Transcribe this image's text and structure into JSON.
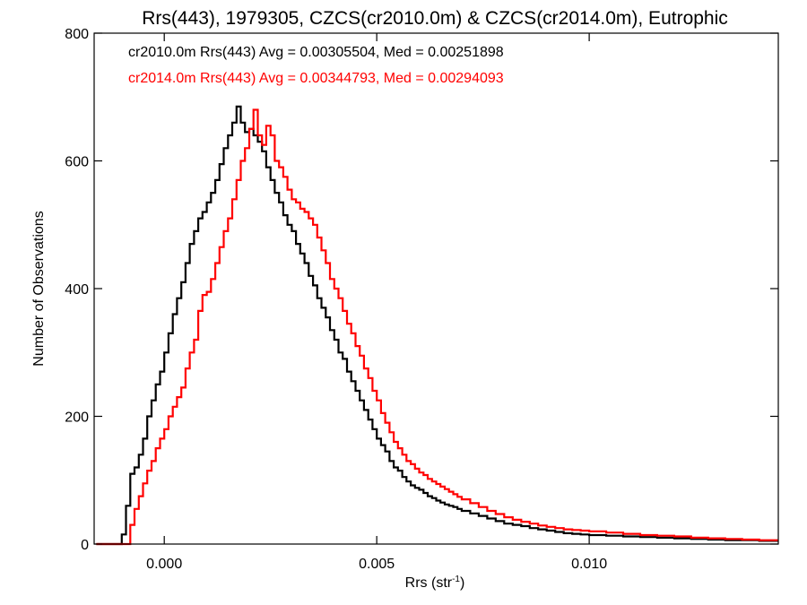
{
  "chart_data": {
    "type": "histogram",
    "title": "Rrs(443), 1979305, CZCS(cr2010.0m) & CZCS(cr2014.0m), Eutrophic",
    "xlabel_main": "Rrs (str",
    "xlabel_sup": "-1",
    "xlabel_close": ")",
    "ylabel": "Number of Observations",
    "xlim": [
      -0.00165,
      0.01445
    ],
    "ylim": [
      0,
      800
    ],
    "x_ticks": [
      {
        "value": 0.0,
        "label": "0.000"
      },
      {
        "value": 0.005,
        "label": "0.005"
      },
      {
        "value": 0.01,
        "label": "0.010"
      }
    ],
    "y_ticks": [
      {
        "value": 0,
        "label": "0"
      },
      {
        "value": 200,
        "label": "200"
      },
      {
        "value": 400,
        "label": "400"
      },
      {
        "value": 600,
        "label": "600"
      },
      {
        "value": 800,
        "label": "800"
      }
    ],
    "annotations": [
      {
        "text": "cr2010.0m Rrs(443) Avg = 0.00305504, Med = 0.00251898",
        "color": "#000000"
      },
      {
        "text": "cr2014.0m Rrs(443) Avg = 0.00344793, Med = 0.00294093",
        "color": "#ff0000"
      }
    ],
    "series": [
      {
        "color": "#000000",
        "points": [
          [
            -0.0016,
            0
          ],
          [
            -0.0011,
            0
          ],
          [
            -0.001,
            15
          ],
          [
            -0.0009,
            60
          ],
          [
            -0.0008,
            110
          ],
          [
            -0.0007,
            120
          ],
          [
            -0.0006,
            140
          ],
          [
            -0.0005,
            165
          ],
          [
            -0.0004,
            200
          ],
          [
            -0.0003,
            225
          ],
          [
            -0.0002,
            250
          ],
          [
            -0.0001,
            270
          ],
          [
            0.0,
            300
          ],
          [
            0.0001,
            330
          ],
          [
            0.0002,
            360
          ],
          [
            0.0003,
            385
          ],
          [
            0.0004,
            410
          ],
          [
            0.0005,
            440
          ],
          [
            0.0006,
            470
          ],
          [
            0.0007,
            490
          ],
          [
            0.0008,
            510
          ],
          [
            0.0009,
            520
          ],
          [
            0.001,
            535
          ],
          [
            0.0011,
            550
          ],
          [
            0.0012,
            570
          ],
          [
            0.0013,
            595
          ],
          [
            0.0014,
            620
          ],
          [
            0.0015,
            640
          ],
          [
            0.0016,
            660
          ],
          [
            0.0017,
            685
          ],
          [
            0.0018,
            660
          ],
          [
            0.0019,
            645
          ],
          [
            0.002,
            650
          ],
          [
            0.0021,
            640
          ],
          [
            0.0022,
            630
          ],
          [
            0.0023,
            615
          ],
          [
            0.0024,
            590
          ],
          [
            0.0025,
            570
          ],
          [
            0.0026,
            550
          ],
          [
            0.0027,
            535
          ],
          [
            0.0028,
            515
          ],
          [
            0.0029,
            500
          ],
          [
            0.003,
            490
          ],
          [
            0.0031,
            470
          ],
          [
            0.0032,
            455
          ],
          [
            0.0033,
            440
          ],
          [
            0.0034,
            420
          ],
          [
            0.0035,
            405
          ],
          [
            0.0036,
            385
          ],
          [
            0.0037,
            370
          ],
          [
            0.0038,
            355
          ],
          [
            0.0039,
            335
          ],
          [
            0.004,
            320
          ],
          [
            0.0041,
            300
          ],
          [
            0.0042,
            290
          ],
          [
            0.0043,
            270
          ],
          [
            0.0044,
            255
          ],
          [
            0.0045,
            240
          ],
          [
            0.0046,
            225
          ],
          [
            0.0047,
            210
          ],
          [
            0.0048,
            195
          ],
          [
            0.0049,
            180
          ],
          [
            0.005,
            165
          ],
          [
            0.0051,
            155
          ],
          [
            0.0052,
            145
          ],
          [
            0.0053,
            130
          ],
          [
            0.0054,
            120
          ],
          [
            0.0055,
            115
          ],
          [
            0.0056,
            105
          ],
          [
            0.0057,
            98
          ],
          [
            0.0058,
            92
          ],
          [
            0.0059,
            88
          ],
          [
            0.006,
            85
          ],
          [
            0.0061,
            80
          ],
          [
            0.0062,
            75
          ],
          [
            0.0063,
            72
          ],
          [
            0.0064,
            68
          ],
          [
            0.0065,
            65
          ],
          [
            0.0066,
            62
          ],
          [
            0.0067,
            60
          ],
          [
            0.0068,
            58
          ],
          [
            0.0069,
            55
          ],
          [
            0.007,
            52
          ],
          [
            0.0072,
            48
          ],
          [
            0.0074,
            44
          ],
          [
            0.0076,
            40
          ],
          [
            0.0078,
            36
          ],
          [
            0.008,
            32
          ],
          [
            0.0082,
            30
          ],
          [
            0.0084,
            28
          ],
          [
            0.0086,
            25
          ],
          [
            0.0088,
            23
          ],
          [
            0.009,
            21
          ],
          [
            0.0092,
            19
          ],
          [
            0.0094,
            17
          ],
          [
            0.0096,
            16
          ],
          [
            0.0098,
            15
          ],
          [
            0.01,
            14
          ],
          [
            0.0104,
            13
          ],
          [
            0.0108,
            12
          ],
          [
            0.0112,
            11
          ],
          [
            0.0116,
            10
          ],
          [
            0.012,
            9
          ],
          [
            0.0124,
            8
          ],
          [
            0.0128,
            7
          ],
          [
            0.0132,
            6
          ],
          [
            0.0136,
            6
          ],
          [
            0.014,
            5
          ],
          [
            0.0144,
            5
          ]
        ]
      },
      {
        "color": "#ff0000",
        "points": [
          [
            -0.0016,
            0
          ],
          [
            -0.0009,
            0
          ],
          [
            -0.0008,
            30
          ],
          [
            -0.0007,
            55
          ],
          [
            -0.0006,
            75
          ],
          [
            -0.0005,
            95
          ],
          [
            -0.0004,
            115
          ],
          [
            -0.0003,
            130
          ],
          [
            -0.0002,
            150
          ],
          [
            -0.0001,
            165
          ],
          [
            0.0,
            180
          ],
          [
            0.0001,
            200
          ],
          [
            0.0002,
            215
          ],
          [
            0.0003,
            230
          ],
          [
            0.0004,
            245
          ],
          [
            0.0005,
            275
          ],
          [
            0.0006,
            300
          ],
          [
            0.0007,
            320
          ],
          [
            0.0008,
            365
          ],
          [
            0.0009,
            390
          ],
          [
            0.001,
            395
          ],
          [
            0.0011,
            415
          ],
          [
            0.0012,
            440
          ],
          [
            0.0013,
            465
          ],
          [
            0.0014,
            490
          ],
          [
            0.0015,
            510
          ],
          [
            0.0016,
            540
          ],
          [
            0.0017,
            570
          ],
          [
            0.0018,
            600
          ],
          [
            0.0019,
            620
          ],
          [
            0.002,
            650
          ],
          [
            0.0021,
            680
          ],
          [
            0.0022,
            640
          ],
          [
            0.0023,
            625
          ],
          [
            0.0024,
            655
          ],
          [
            0.0025,
            640
          ],
          [
            0.0026,
            600
          ],
          [
            0.0027,
            590
          ],
          [
            0.0028,
            575
          ],
          [
            0.0029,
            555
          ],
          [
            0.003,
            540
          ],
          [
            0.0031,
            535
          ],
          [
            0.0032,
            525
          ],
          [
            0.0033,
            520
          ],
          [
            0.0034,
            510
          ],
          [
            0.0035,
            500
          ],
          [
            0.0036,
            480
          ],
          [
            0.0037,
            460
          ],
          [
            0.0038,
            440
          ],
          [
            0.0039,
            415
          ],
          [
            0.004,
            400
          ],
          [
            0.0041,
            385
          ],
          [
            0.0042,
            365
          ],
          [
            0.0043,
            345
          ],
          [
            0.0044,
            330
          ],
          [
            0.0045,
            310
          ],
          [
            0.0046,
            295
          ],
          [
            0.0047,
            275
          ],
          [
            0.0048,
            260
          ],
          [
            0.0049,
            240
          ],
          [
            0.005,
            225
          ],
          [
            0.0051,
            205
          ],
          [
            0.0052,
            190
          ],
          [
            0.0053,
            175
          ],
          [
            0.0054,
            160
          ],
          [
            0.0055,
            150
          ],
          [
            0.0056,
            140
          ],
          [
            0.0057,
            130
          ],
          [
            0.0058,
            125
          ],
          [
            0.0059,
            118
          ],
          [
            0.006,
            112
          ],
          [
            0.0061,
            108
          ],
          [
            0.0062,
            102
          ],
          [
            0.0063,
            98
          ],
          [
            0.0064,
            94
          ],
          [
            0.0065,
            90
          ],
          [
            0.0066,
            86
          ],
          [
            0.0067,
            82
          ],
          [
            0.0068,
            78
          ],
          [
            0.0069,
            74
          ],
          [
            0.007,
            70
          ],
          [
            0.0072,
            64
          ],
          [
            0.0074,
            58
          ],
          [
            0.0076,
            52
          ],
          [
            0.0078,
            47
          ],
          [
            0.008,
            42
          ],
          [
            0.0082,
            38
          ],
          [
            0.0084,
            35
          ],
          [
            0.0086,
            32
          ],
          [
            0.0088,
            29
          ],
          [
            0.009,
            27
          ],
          [
            0.0092,
            25
          ],
          [
            0.0094,
            23
          ],
          [
            0.0096,
            22
          ],
          [
            0.0098,
            21
          ],
          [
            0.01,
            20
          ],
          [
            0.0104,
            18
          ],
          [
            0.0108,
            16
          ],
          [
            0.0112,
            14
          ],
          [
            0.0116,
            13
          ],
          [
            0.012,
            12
          ],
          [
            0.0124,
            10
          ],
          [
            0.0128,
            9
          ],
          [
            0.0132,
            8
          ],
          [
            0.0136,
            7
          ],
          [
            0.014,
            6
          ],
          [
            0.0144,
            6
          ]
        ]
      }
    ]
  }
}
